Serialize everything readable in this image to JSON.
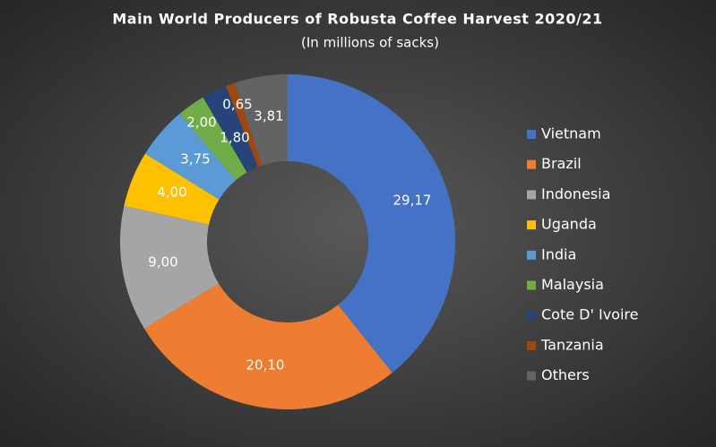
{
  "chart_data": {
    "type": "donut",
    "title": "Main World Producers of Robusta Coffee Harvest 2020/21",
    "subtitle": "(In millions of sacks)",
    "categories": [
      "Vietnam",
      "Brazil",
      "Indonesia",
      "Uganda",
      "India",
      "Malaysia",
      "Cote D' Ivoire",
      "Tanzania",
      "Others"
    ],
    "values": [
      29.17,
      20.1,
      9.0,
      4.0,
      3.75,
      2.0,
      1.8,
      0.65,
      3.81
    ],
    "value_labels": [
      "29,17",
      "20,10",
      "9,00",
      "4,00",
      "3,75",
      "2,00",
      "1,80",
      "0,65",
      "3,81"
    ],
    "colors": [
      "#4472c4",
      "#ed7d31",
      "#a5a5a5",
      "#ffc000",
      "#5b9bd5",
      "#70ad47",
      "#264478",
      "#9e480e",
      "#636363"
    ],
    "legend": "right"
  }
}
